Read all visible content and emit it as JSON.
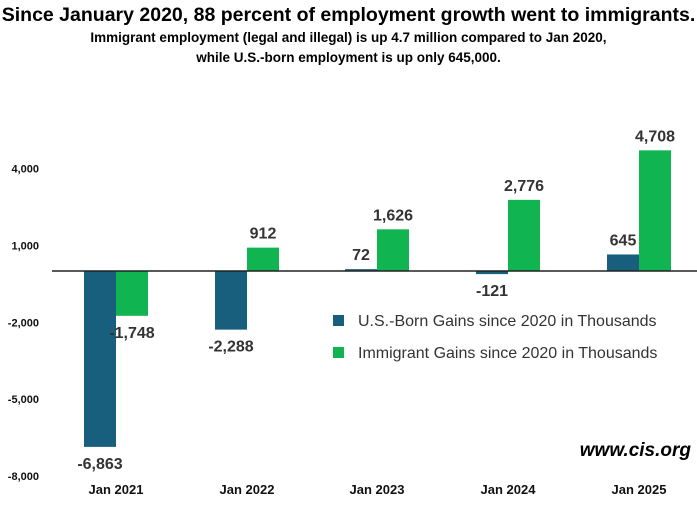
{
  "header": {
    "title": "Since January 2020, 88 percent of employment growth went to immigrants.",
    "subtitle_line1": "Immigrant employment (legal and illegal) is up 4.7 million compared to Jan 2020,",
    "subtitle_line2": "while U.S.-born employment is up only 645,000."
  },
  "watermark": "www.cis.org",
  "colors": {
    "us_born": "#175f7d",
    "immigrant": "#10b552",
    "axis": "#222222"
  },
  "chart_data": {
    "type": "bar",
    "categories": [
      "Jan 2021",
      "Jan 2022",
      "Jan 2023",
      "Jan 2024",
      "Jan 2025"
    ],
    "series": [
      {
        "name": "U.S.-Born Gains since 2020 in Thousands",
        "values": [
          -6863,
          -2288,
          72,
          -121,
          645
        ],
        "labels": [
          "-6,863",
          "-2,288",
          "72",
          "-121",
          "645"
        ]
      },
      {
        "name": "Immigrant Gains since 2020 in Thousands",
        "values": [
          -1748,
          912,
          1626,
          2776,
          4708
        ],
        "labels": [
          "-1,748",
          "912",
          "1,626",
          "2,776",
          "4,708"
        ]
      }
    ],
    "yticks": [
      4000,
      1000,
      -2000,
      -5000,
      -8000
    ],
    "ytick_labels": [
      "4,000",
      "1,000",
      "-2,000",
      "-5,000",
      "-8,000"
    ],
    "ylim": [
      -8000,
      4000
    ],
    "legend_position": "center-right",
    "grid": false
  }
}
